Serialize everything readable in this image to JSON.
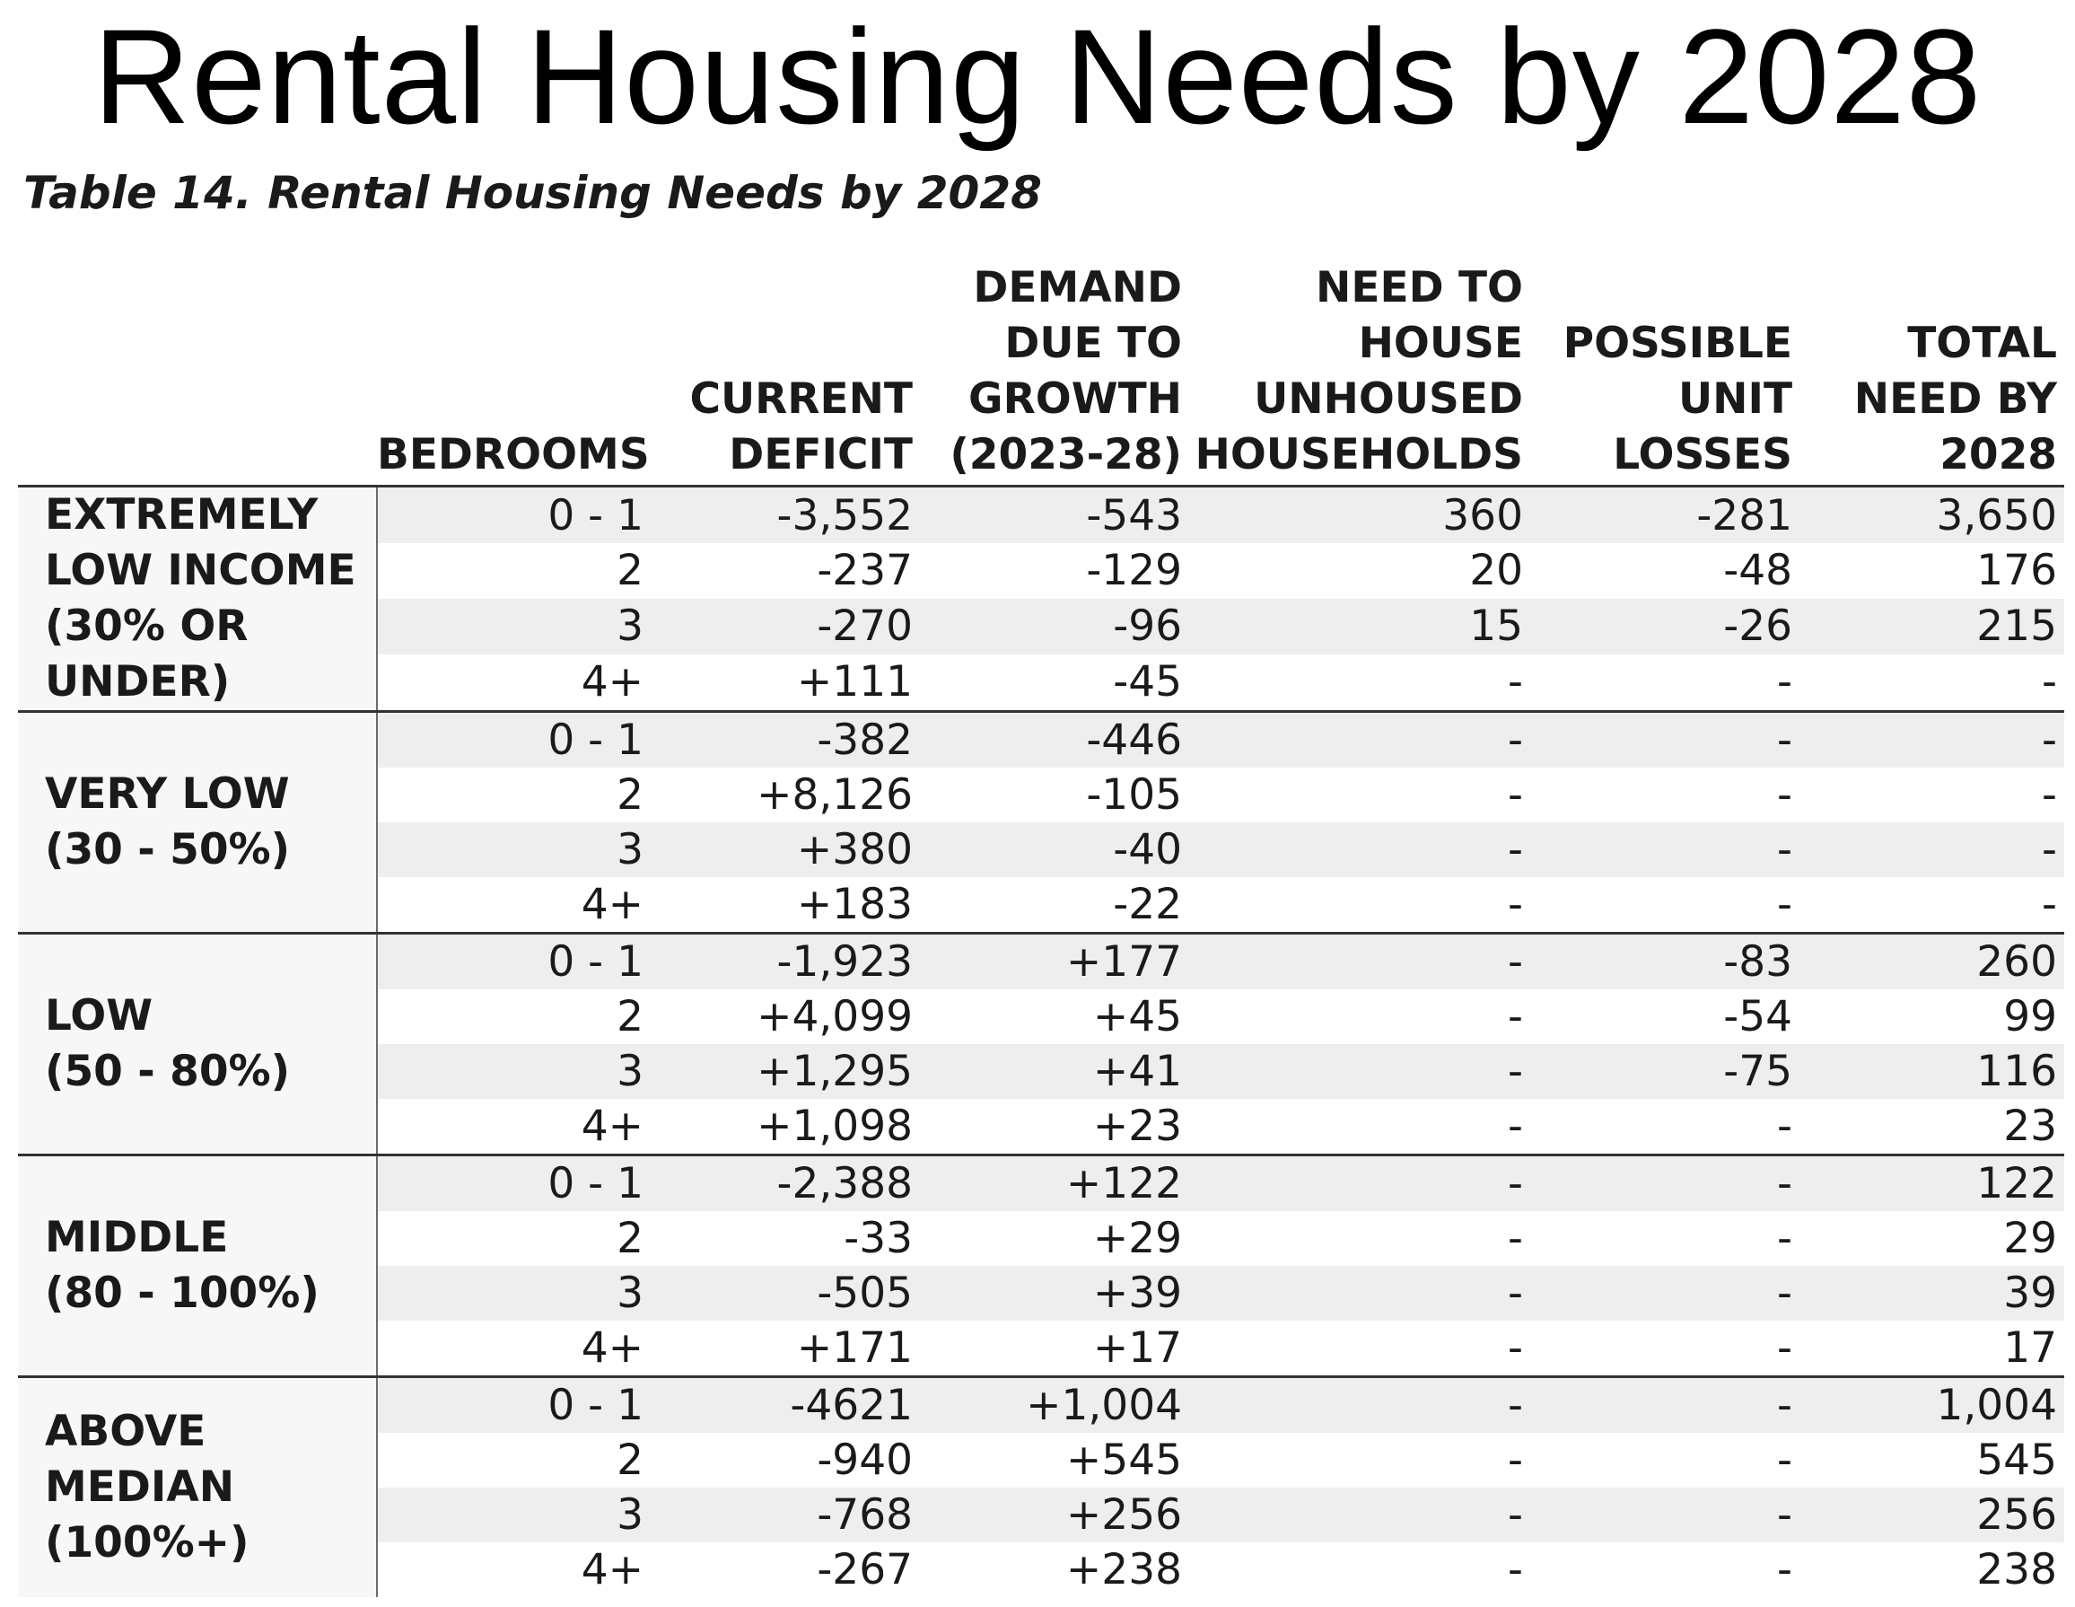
{
  "title": "Rental Housing Needs by 2028",
  "caption": "Table 14. Rental Housing Needs by 2028",
  "columns": [
    {
      "lines": [
        "",
        "",
        "",
        ""
      ]
    },
    {
      "lines": [
        "",
        "",
        "",
        "BEDROOMS"
      ]
    },
    {
      "lines": [
        "",
        "",
        "CURRENT",
        "DEFICIT"
      ]
    },
    {
      "lines": [
        "DEMAND",
        "DUE TO",
        "GROWTH",
        "(2023-28)"
      ]
    },
    {
      "lines": [
        "NEED TO",
        "HOUSE",
        "UNHOUSED",
        "HOUSEHOLDS"
      ]
    },
    {
      "lines": [
        "",
        "POSSIBLE",
        "UNIT",
        "LOSSES"
      ]
    },
    {
      "lines": [
        "",
        "TOTAL",
        "NEED BY",
        "2028"
      ]
    }
  ],
  "groups": [
    {
      "label_lines": [
        "EXTREMELY",
        "LOW INCOME",
        "(30% OR",
        "UNDER)"
      ],
      "rows": [
        [
          "0 - 1",
          "-3,552",
          "-543",
          "360",
          "-281",
          "3,650"
        ],
        [
          "2",
          "-237",
          "-129",
          "20",
          "-48",
          "176"
        ],
        [
          "3",
          "-270",
          "-96",
          "15",
          "-26",
          "215"
        ],
        [
          "4+",
          "+111",
          "-45",
          "-",
          "-",
          "-"
        ]
      ]
    },
    {
      "label_lines": [
        "VERY LOW",
        "(30 - 50%)"
      ],
      "rows": [
        [
          "0 - 1",
          "-382",
          "-446",
          "-",
          "-",
          "-"
        ],
        [
          "2",
          "+8,126",
          "-105",
          "-",
          "-",
          "-"
        ],
        [
          "3",
          "+380",
          "-40",
          "-",
          "-",
          "-"
        ],
        [
          "4+",
          "+183",
          "-22",
          "-",
          "-",
          "-"
        ]
      ]
    },
    {
      "label_lines": [
        "LOW",
        "(50 - 80%)"
      ],
      "rows": [
        [
          "0 - 1",
          "-1,923",
          "+177",
          "-",
          "-83",
          "260"
        ],
        [
          "2",
          "+4,099",
          "+45",
          "-",
          "-54",
          "99"
        ],
        [
          "3",
          "+1,295",
          "+41",
          "-",
          "-75",
          "116"
        ],
        [
          "4+",
          "+1,098",
          "+23",
          "-",
          "-",
          "23"
        ]
      ]
    },
    {
      "label_lines": [
        "MIDDLE",
        "(80 - 100%)"
      ],
      "rows": [
        [
          "0 - 1",
          "-2,388",
          "+122",
          "-",
          "-",
          "122"
        ],
        [
          "2",
          "-33",
          "+29",
          "-",
          "-",
          "29"
        ],
        [
          "3",
          "-505",
          "+39",
          "-",
          "-",
          "39"
        ],
        [
          "4+",
          "+171",
          "+17",
          "-",
          "-",
          "17"
        ]
      ]
    },
    {
      "label_lines": [
        "ABOVE",
        "MEDIAN",
        "(100%+)"
      ],
      "rows": [
        [
          "0 - 1",
          "-4621",
          "+1,004",
          "-",
          "-",
          "1,004"
        ],
        [
          "2",
          "-940",
          "+545",
          "-",
          "-",
          "545"
        ],
        [
          "3",
          "-768",
          "+256",
          "-",
          "-",
          "256"
        ],
        [
          "4+",
          "-267",
          "+238",
          "-",
          "-",
          "238"
        ]
      ]
    }
  ]
}
